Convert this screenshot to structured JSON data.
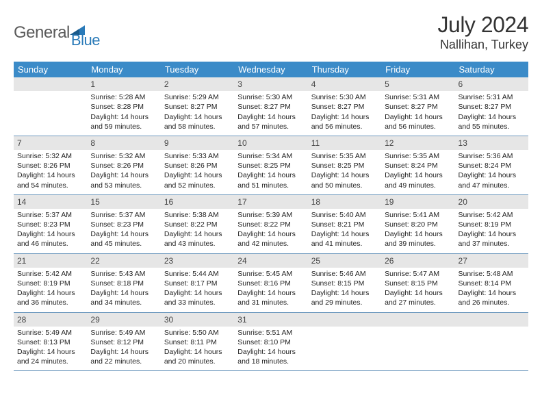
{
  "brand": {
    "part1": "General",
    "part2": "Blue"
  },
  "title": "July 2024",
  "location": "Nallihan, Turkey",
  "theme": {
    "header_bg": "#3b8bc8",
    "header_text": "#ffffff",
    "daynum_bg": "#e6e6e6",
    "border_color": "#6b97bd",
    "page_bg": "#ffffff",
    "text_color": "#222222",
    "brand_gray": "#5a5a5a",
    "brand_blue": "#2a7ab8"
  },
  "day_headers": [
    "Sunday",
    "Monday",
    "Tuesday",
    "Wednesday",
    "Thursday",
    "Friday",
    "Saturday"
  ],
  "weeks": [
    [
      {
        "blank": true
      },
      {
        "n": "1",
        "sunrise": "5:28 AM",
        "sunset": "8:28 PM",
        "daylight": "14 hours and 59 minutes."
      },
      {
        "n": "2",
        "sunrise": "5:29 AM",
        "sunset": "8:27 PM",
        "daylight": "14 hours and 58 minutes."
      },
      {
        "n": "3",
        "sunrise": "5:30 AM",
        "sunset": "8:27 PM",
        "daylight": "14 hours and 57 minutes."
      },
      {
        "n": "4",
        "sunrise": "5:30 AM",
        "sunset": "8:27 PM",
        "daylight": "14 hours and 56 minutes."
      },
      {
        "n": "5",
        "sunrise": "5:31 AM",
        "sunset": "8:27 PM",
        "daylight": "14 hours and 56 minutes."
      },
      {
        "n": "6",
        "sunrise": "5:31 AM",
        "sunset": "8:27 PM",
        "daylight": "14 hours and 55 minutes."
      }
    ],
    [
      {
        "n": "7",
        "sunrise": "5:32 AM",
        "sunset": "8:26 PM",
        "daylight": "14 hours and 54 minutes."
      },
      {
        "n": "8",
        "sunrise": "5:32 AM",
        "sunset": "8:26 PM",
        "daylight": "14 hours and 53 minutes."
      },
      {
        "n": "9",
        "sunrise": "5:33 AM",
        "sunset": "8:26 PM",
        "daylight": "14 hours and 52 minutes."
      },
      {
        "n": "10",
        "sunrise": "5:34 AM",
        "sunset": "8:25 PM",
        "daylight": "14 hours and 51 minutes."
      },
      {
        "n": "11",
        "sunrise": "5:35 AM",
        "sunset": "8:25 PM",
        "daylight": "14 hours and 50 minutes."
      },
      {
        "n": "12",
        "sunrise": "5:35 AM",
        "sunset": "8:24 PM",
        "daylight": "14 hours and 49 minutes."
      },
      {
        "n": "13",
        "sunrise": "5:36 AM",
        "sunset": "8:24 PM",
        "daylight": "14 hours and 47 minutes."
      }
    ],
    [
      {
        "n": "14",
        "sunrise": "5:37 AM",
        "sunset": "8:23 PM",
        "daylight": "14 hours and 46 minutes."
      },
      {
        "n": "15",
        "sunrise": "5:37 AM",
        "sunset": "8:23 PM",
        "daylight": "14 hours and 45 minutes."
      },
      {
        "n": "16",
        "sunrise": "5:38 AM",
        "sunset": "8:22 PM",
        "daylight": "14 hours and 43 minutes."
      },
      {
        "n": "17",
        "sunrise": "5:39 AM",
        "sunset": "8:22 PM",
        "daylight": "14 hours and 42 minutes."
      },
      {
        "n": "18",
        "sunrise": "5:40 AM",
        "sunset": "8:21 PM",
        "daylight": "14 hours and 41 minutes."
      },
      {
        "n": "19",
        "sunrise": "5:41 AM",
        "sunset": "8:20 PM",
        "daylight": "14 hours and 39 minutes."
      },
      {
        "n": "20",
        "sunrise": "5:42 AM",
        "sunset": "8:19 PM",
        "daylight": "14 hours and 37 minutes."
      }
    ],
    [
      {
        "n": "21",
        "sunrise": "5:42 AM",
        "sunset": "8:19 PM",
        "daylight": "14 hours and 36 minutes."
      },
      {
        "n": "22",
        "sunrise": "5:43 AM",
        "sunset": "8:18 PM",
        "daylight": "14 hours and 34 minutes."
      },
      {
        "n": "23",
        "sunrise": "5:44 AM",
        "sunset": "8:17 PM",
        "daylight": "14 hours and 33 minutes."
      },
      {
        "n": "24",
        "sunrise": "5:45 AM",
        "sunset": "8:16 PM",
        "daylight": "14 hours and 31 minutes."
      },
      {
        "n": "25",
        "sunrise": "5:46 AM",
        "sunset": "8:15 PM",
        "daylight": "14 hours and 29 minutes."
      },
      {
        "n": "26",
        "sunrise": "5:47 AM",
        "sunset": "8:15 PM",
        "daylight": "14 hours and 27 minutes."
      },
      {
        "n": "27",
        "sunrise": "5:48 AM",
        "sunset": "8:14 PM",
        "daylight": "14 hours and 26 minutes."
      }
    ],
    [
      {
        "n": "28",
        "sunrise": "5:49 AM",
        "sunset": "8:13 PM",
        "daylight": "14 hours and 24 minutes."
      },
      {
        "n": "29",
        "sunrise": "5:49 AM",
        "sunset": "8:12 PM",
        "daylight": "14 hours and 22 minutes."
      },
      {
        "n": "30",
        "sunrise": "5:50 AM",
        "sunset": "8:11 PM",
        "daylight": "14 hours and 20 minutes."
      },
      {
        "n": "31",
        "sunrise": "5:51 AM",
        "sunset": "8:10 PM",
        "daylight": "14 hours and 18 minutes."
      },
      {
        "blank": true
      },
      {
        "blank": true
      },
      {
        "blank": true
      }
    ]
  ],
  "labels": {
    "sunrise": "Sunrise:",
    "sunset": "Sunset:",
    "daylight": "Daylight:"
  }
}
